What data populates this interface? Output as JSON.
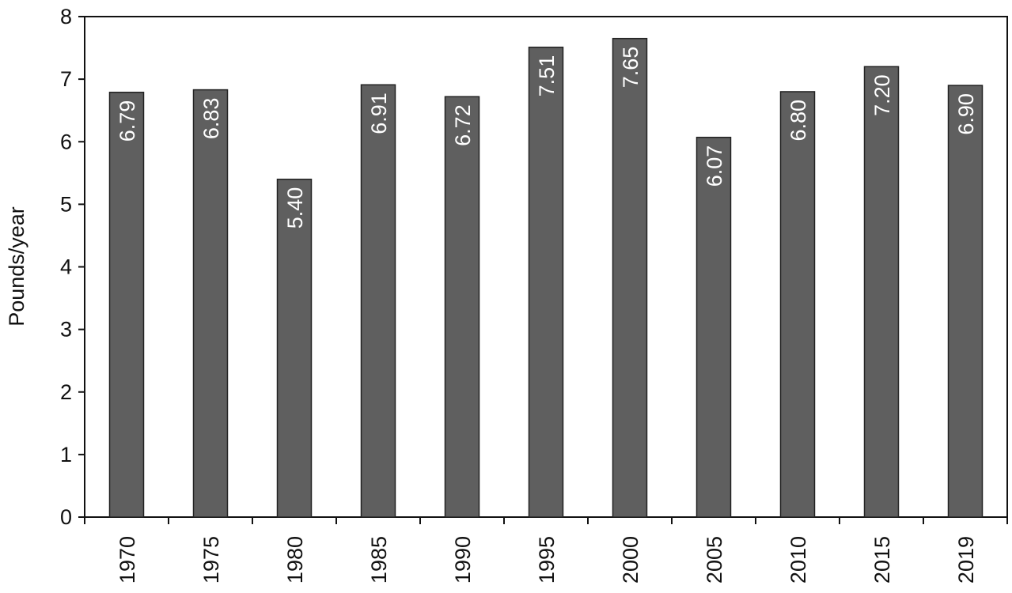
{
  "chart_data": {
    "type": "bar",
    "title": "",
    "xlabel": "",
    "ylabel": "Pounds/year",
    "ylim": [
      0,
      8
    ],
    "yticks": [
      0,
      1,
      2,
      3,
      4,
      5,
      6,
      7,
      8
    ],
    "grid": false,
    "legend": "none",
    "orientation": "vertical",
    "bar_color": "#5f5f5f",
    "categories": [
      "1970",
      "1975",
      "1980",
      "1985",
      "1990",
      "1995",
      "2000",
      "2005",
      "2010",
      "2015",
      "2019"
    ],
    "values": [
      6.79,
      6.83,
      5.4,
      6.91,
      6.72,
      7.51,
      7.65,
      6.07,
      6.8,
      7.2,
      6.9
    ],
    "data_labels": [
      "6.79",
      "6.83",
      "5.40",
      "6.91",
      "6.72",
      "7.51",
      "7.65",
      "6.07",
      "6.80",
      "7.20",
      "6.90"
    ]
  }
}
